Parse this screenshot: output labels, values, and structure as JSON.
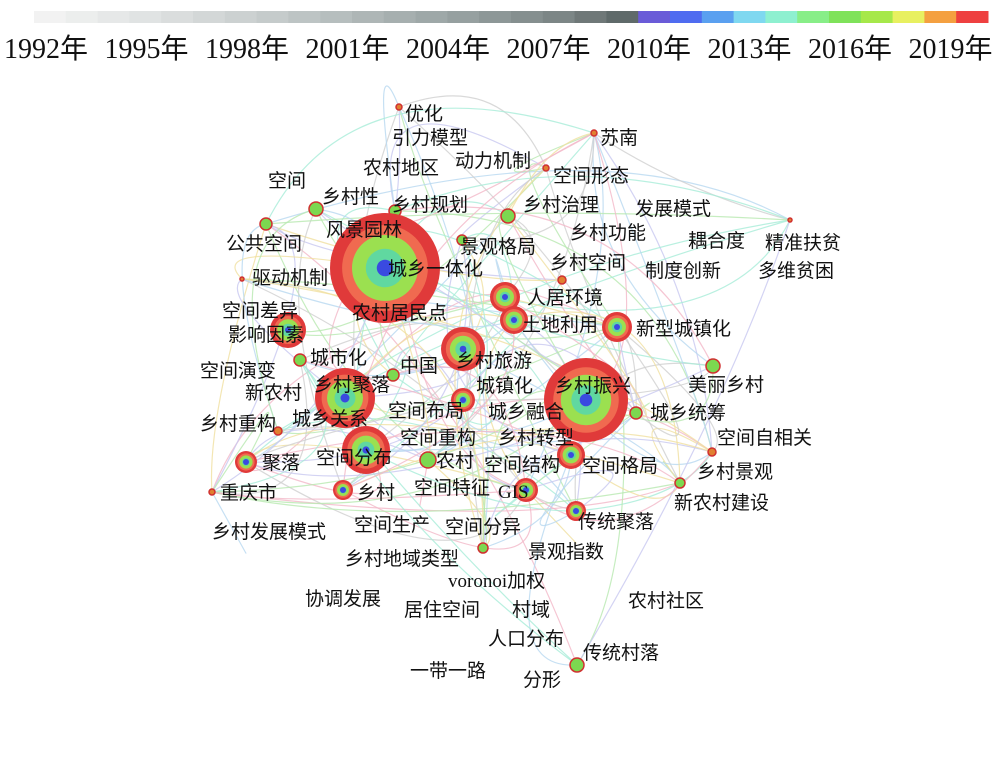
{
  "timeline": {
    "years": [
      "1992年",
      "1995年",
      "1998年",
      "2001年",
      "2004年",
      "2007年",
      "2010年",
      "2013年",
      "2016年",
      "2019年"
    ]
  },
  "nodes": [
    {
      "label": "优化"
    },
    {
      "label": "引力模型"
    },
    {
      "label": "苏南"
    },
    {
      "label": "动力机制"
    },
    {
      "label": "农村地区"
    },
    {
      "label": "空间形态"
    },
    {
      "label": "空间"
    },
    {
      "label": "乡村性"
    },
    {
      "label": "乡村规划"
    },
    {
      "label": "乡村治理"
    },
    {
      "label": "发展模式"
    },
    {
      "label": "风景园林"
    },
    {
      "label": "景观格局"
    },
    {
      "label": "乡村功能"
    },
    {
      "label": "耦合度"
    },
    {
      "label": "精准扶贫"
    },
    {
      "label": "公共空间"
    },
    {
      "label": "城乡一体化"
    },
    {
      "label": "乡村空间"
    },
    {
      "label": "制度创新"
    },
    {
      "label": "多维贫困"
    },
    {
      "label": "驱动机制"
    },
    {
      "label": "农村居民点"
    },
    {
      "label": "人居环境"
    },
    {
      "label": "空间差异"
    },
    {
      "label": "影响因素"
    },
    {
      "label": "土地利用"
    },
    {
      "label": "新型城镇化"
    },
    {
      "label": "乡村旅游"
    },
    {
      "label": "城市化"
    },
    {
      "label": "中国"
    },
    {
      "label": "空间演变"
    },
    {
      "label": "新农村"
    },
    {
      "label": "乡村聚落"
    },
    {
      "label": "城镇化"
    },
    {
      "label": "乡村振兴"
    },
    {
      "label": "美丽乡村"
    },
    {
      "label": "城乡关系"
    },
    {
      "label": "空间布局"
    },
    {
      "label": "城乡融合"
    },
    {
      "label": "城乡统筹"
    },
    {
      "label": "乡村重构"
    },
    {
      "label": "空间重构"
    },
    {
      "label": "乡村转型"
    },
    {
      "label": "空间自相关"
    },
    {
      "label": "聚落"
    },
    {
      "label": "空间分布"
    },
    {
      "label": "农村"
    },
    {
      "label": "空间结构"
    },
    {
      "label": "空间格局"
    },
    {
      "label": "乡村景观"
    },
    {
      "label": "重庆市"
    },
    {
      "label": "乡村"
    },
    {
      "label": "空间特征"
    },
    {
      "label": "GIS"
    },
    {
      "label": "新农村建设"
    },
    {
      "label": "乡村发展模式"
    },
    {
      "label": "空间生产"
    },
    {
      "label": "空间分异"
    },
    {
      "label": "传统聚落"
    },
    {
      "label": "乡村地域类型"
    },
    {
      "label": "景观指数"
    },
    {
      "label": "voronoi加权"
    },
    {
      "label": "协调发展"
    },
    {
      "label": "居住空间"
    },
    {
      "label": "村域"
    },
    {
      "label": "农村社区"
    },
    {
      "label": "人口分布"
    },
    {
      "label": "传统村落"
    },
    {
      "label": "一带一路"
    },
    {
      "label": "分形"
    }
  ]
}
